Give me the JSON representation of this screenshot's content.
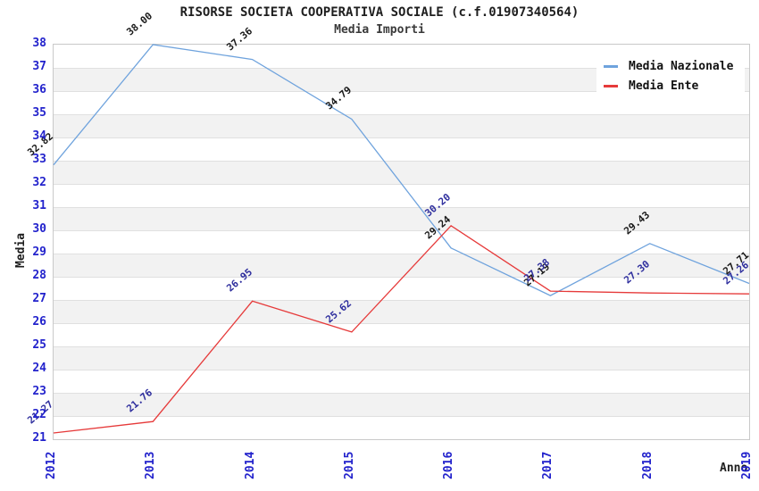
{
  "header": {
    "title": "RISORSE SOCIETA COOPERATIVA SOCIALE (c.f.01907340564)",
    "subtitle": "Media Importi"
  },
  "chart_data": {
    "type": "line",
    "x": [
      "2012",
      "2013",
      "2014",
      "2015",
      "2016",
      "2017",
      "2018",
      "2019"
    ],
    "series": [
      {
        "name": "Media Nazionale",
        "color": "#6fa3dd",
        "label_color": "#1a1a1a",
        "values": [
          32.82,
          38.0,
          37.36,
          34.79,
          29.24,
          27.19,
          29.43,
          27.71
        ]
      },
      {
        "name": "Media Ente",
        "color": "#e63a3a",
        "label_color": "#2f2f9e",
        "values": [
          21.27,
          21.76,
          26.95,
          25.62,
          30.2,
          27.38,
          27.3,
          27.26
        ]
      }
    ],
    "xlabel": "Anno",
    "ylabel": "Media",
    "ylim": [
      21,
      38
    ],
    "y_tick_step": 1,
    "grid": true,
    "band_fill_alternating": true,
    "legend_position": "top-right",
    "label_decimals": 2
  },
  "colors": {
    "tick_label": "#2222cc",
    "band_gray": "#f2f2f2",
    "band_white": "#ffffff",
    "grid_line": "#e0e0e0",
    "plot_border": "#c9c9c9"
  }
}
